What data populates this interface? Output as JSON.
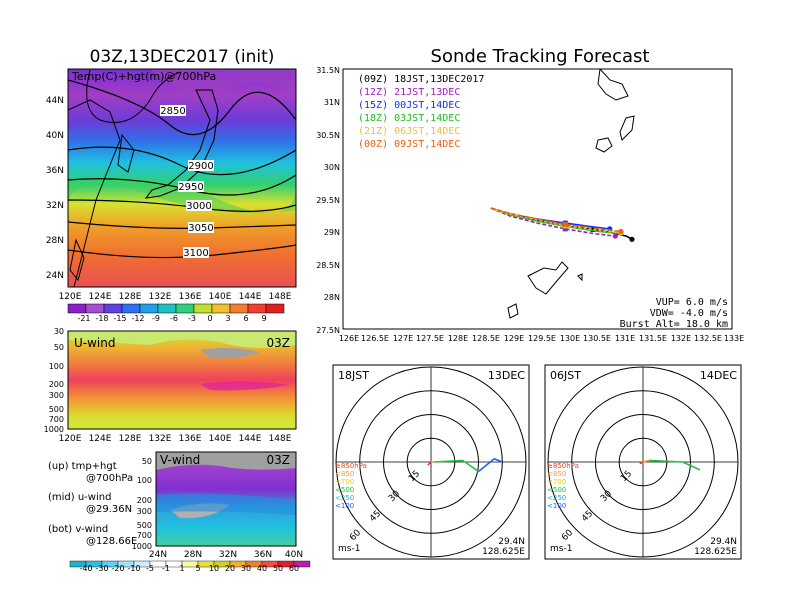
{
  "left": {
    "title": "03Z,13DEC2017 (init)",
    "map_label": "Temp(C)+hgt(m)@700hPa",
    "lat_ticks": [
      "44N",
      "40N",
      "36N",
      "32N",
      "28N",
      "24N"
    ],
    "lon_ticks": [
      "120E",
      "124E",
      "128E",
      "132E",
      "136E",
      "140E",
      "144E",
      "148E"
    ],
    "contours": [
      "2850",
      "2900",
      "2950",
      "3000",
      "3050",
      "3100"
    ],
    "temp_colorbar": [
      "-21",
      "-18",
      "-15",
      "-12",
      "-9",
      "-6",
      "-3",
      "0",
      "3",
      "6",
      "9"
    ],
    "u_wind": {
      "label": "U-wind",
      "time": "03Z",
      "p_ticks": [
        "30",
        "50",
        "100",
        "200",
        "300",
        "500",
        "700",
        "1000"
      ],
      "lon_ticks": [
        "120E",
        "124E",
        "128E",
        "132E",
        "136E",
        "140E",
        "144E",
        "148E"
      ]
    },
    "v_wind": {
      "label": "V-wind",
      "time": "03Z",
      "p_ticks": [
        "50",
        "100",
        "200",
        "300",
        "500",
        "700",
        "1000"
      ],
      "lat_ticks": [
        "24N",
        "28N",
        "32N",
        "36N",
        "40N"
      ]
    },
    "notes": [
      {
        "a": "(up) tmp+hgt",
        "b": "@700hPa"
      },
      {
        "a": "(mid) u-wind",
        "b": "@29.36N"
      },
      {
        "a": "(bot) v-wind",
        "b": "@128.66E"
      }
    ],
    "wind_colorbar": [
      "-40",
      "-30",
      "-20",
      "-10",
      "-5",
      "-1",
      "1",
      "5",
      "10",
      "20",
      "30",
      "40",
      "50",
      "60"
    ]
  },
  "tracking": {
    "title": "Sonde Tracking Forecast",
    "legend": [
      {
        "text": "(09Z) 18JST,13DEC2017",
        "color": "#000000"
      },
      {
        "text": "(12Z) 21JST,13DEC",
        "color": "#a020c0"
      },
      {
        "text": "(15Z) 00JST,14DEC",
        "color": "#1030ff"
      },
      {
        "text": "(18Z) 03JST,14DEC",
        "color": "#20c020"
      },
      {
        "text": "(21Z) 06JST,14DEC",
        "color": "#f0c030"
      },
      {
        "text": "(00Z) 09JST,14DEC",
        "color": "#f06010"
      }
    ],
    "lat_ticks": [
      "31.5N",
      "31N",
      "30.5N",
      "30N",
      "29.5N",
      "29N",
      "28.5N",
      "28N",
      "27.5N"
    ],
    "lon_ticks": [
      "126E",
      "126.5E",
      "127E",
      "127.5E",
      "128E",
      "128.5E",
      "129E",
      "129.5E",
      "130E",
      "130.5E",
      "131E",
      "131.5E",
      "132E",
      "132.5E",
      "133E"
    ],
    "info": [
      "VUP= 6.0 m/s",
      "VDW= -4.0 m/s",
      "Burst Alt= 18.0 km"
    ]
  },
  "hodographs": [
    {
      "time": "18JST",
      "date": "13DEC",
      "unit": "ms-1",
      "lat": "29.4N",
      "lon": "128.625E"
    },
    {
      "time": "06JST",
      "date": "14DEC",
      "unit": "ms-1",
      "lat": "29.4N",
      "lon": "128.625E"
    }
  ],
  "hodo_rings": [
    "15",
    "30",
    "45",
    "60"
  ],
  "hodo_legend": [
    {
      "text": "≥850hPa",
      "color": "#f04020"
    },
    {
      "text": "<850",
      "color": "#f0a030"
    },
    {
      "text": "<700",
      "color": "#e0d020"
    },
    {
      "text": "<500",
      "color": "#20c040"
    },
    {
      "text": "<250",
      "color": "#20b0d0"
    },
    {
      "text": "<100",
      "color": "#2060f0"
    }
  ],
  "chart_data": [
    {
      "type": "heatmap",
      "title": "03Z,13DEC2017 (init)",
      "annotation": "Temp(C)+hgt(m)@700hPa",
      "xlim": [
        120,
        150
      ],
      "ylim": [
        22,
        48
      ],
      "contour_levels_m": [
        2850,
        2900,
        2950,
        3000,
        3050,
        3100
      ],
      "colorbar_levels_C": [
        -21,
        -18,
        -15,
        -12,
        -9,
        -6,
        -3,
        0,
        3,
        6,
        9
      ]
    },
    {
      "type": "heatmap",
      "title": "U-wind",
      "annotation": "03Z",
      "xlim": [
        120,
        150
      ],
      "p_levels_hPa": [
        30,
        50,
        100,
        200,
        300,
        500,
        700,
        1000
      ],
      "colorbar_levels_ms": [
        -40,
        -30,
        -20,
        -10,
        -5,
        -1,
        1,
        5,
        10,
        20,
        30,
        40,
        50,
        60
      ]
    },
    {
      "type": "heatmap",
      "title": "V-wind",
      "annotation": "03Z",
      "xlim": [
        24,
        40
      ],
      "p_levels_hPa": [
        50,
        100,
        200,
        300,
        500,
        700,
        1000
      ]
    },
    {
      "type": "line",
      "title": "Sonde Tracking Forecast",
      "xlim": [
        126,
        133
      ],
      "ylim": [
        27.5,
        31.5
      ],
      "series": [
        {
          "name": "(09Z) 18JST,13DEC2017",
          "x": [
            128.66,
            129.0,
            129.5,
            130.0,
            130.5,
            130.8,
            131.1,
            131.2
          ],
          "y": [
            29.36,
            29.27,
            29.17,
            29.09,
            29.03,
            28.99,
            28.93,
            28.88
          ]
        },
        {
          "name": "(12Z) 21JST,13DEC",
          "x": [
            128.66,
            129.0,
            129.5,
            130.0,
            130.5,
            130.9
          ],
          "y": [
            29.36,
            29.24,
            29.13,
            29.04,
            28.97,
            28.93
          ]
        },
        {
          "name": "(15Z) 00JST,14DEC",
          "x": [
            128.66,
            129.0,
            129.5,
            130.0,
            130.5,
            130.8
          ],
          "y": [
            29.36,
            29.27,
            29.19,
            29.13,
            29.07,
            29.04
          ]
        },
        {
          "name": "(18Z) 03JST,14DEC",
          "x": [
            128.66,
            129.0,
            129.5,
            130.0,
            130.6,
            131.0
          ],
          "y": [
            29.36,
            29.26,
            29.16,
            29.08,
            29.0,
            28.97
          ]
        },
        {
          "name": "(21Z) 06JST,14DEC",
          "x": [
            128.66,
            129.0,
            129.5,
            130.0,
            130.6,
            131.0
          ],
          "y": [
            29.36,
            29.27,
            29.18,
            29.09,
            29.02,
            28.98
          ]
        },
        {
          "name": "(00Z) 09JST,14DEC",
          "x": [
            128.66,
            129.0,
            129.5,
            130.0,
            130.5,
            131.0
          ],
          "y": [
            29.36,
            29.28,
            29.19,
            29.11,
            29.05,
            29.0
          ]
        }
      ]
    },
    {
      "type": "line",
      "title": "18JST 13DEC",
      "rings_ms": [
        15,
        30,
        45,
        60
      ],
      "series": [
        {
          "name": "≥850hPa",
          "x": [
            -2,
            -1,
            0
          ],
          "y": [
            -2,
            -1,
            0
          ]
        },
        {
          "name": "<850",
          "x": [
            0,
            2
          ],
          "y": [
            0,
            0
          ]
        },
        {
          "name": "<500",
          "x": [
            2,
            20,
            30
          ],
          "y": [
            0,
            1,
            -6
          ]
        },
        {
          "name": "<100",
          "x": [
            30,
            40,
            45
          ],
          "y": [
            -6,
            2,
            0
          ]
        }
      ]
    },
    {
      "type": "line",
      "title": "06JST 14DEC",
      "rings_ms": [
        15,
        30,
        45,
        60
      ],
      "series": [
        {
          "name": "≥850hPa",
          "x": [
            -2,
            0
          ],
          "y": [
            -1,
            0
          ]
        },
        {
          "name": "<850",
          "x": [
            0,
            4
          ],
          "y": [
            0,
            1
          ]
        },
        {
          "name": "<500",
          "x": [
            4,
            25,
            36
          ],
          "y": [
            1,
            0,
            -5
          ]
        }
      ]
    }
  ]
}
